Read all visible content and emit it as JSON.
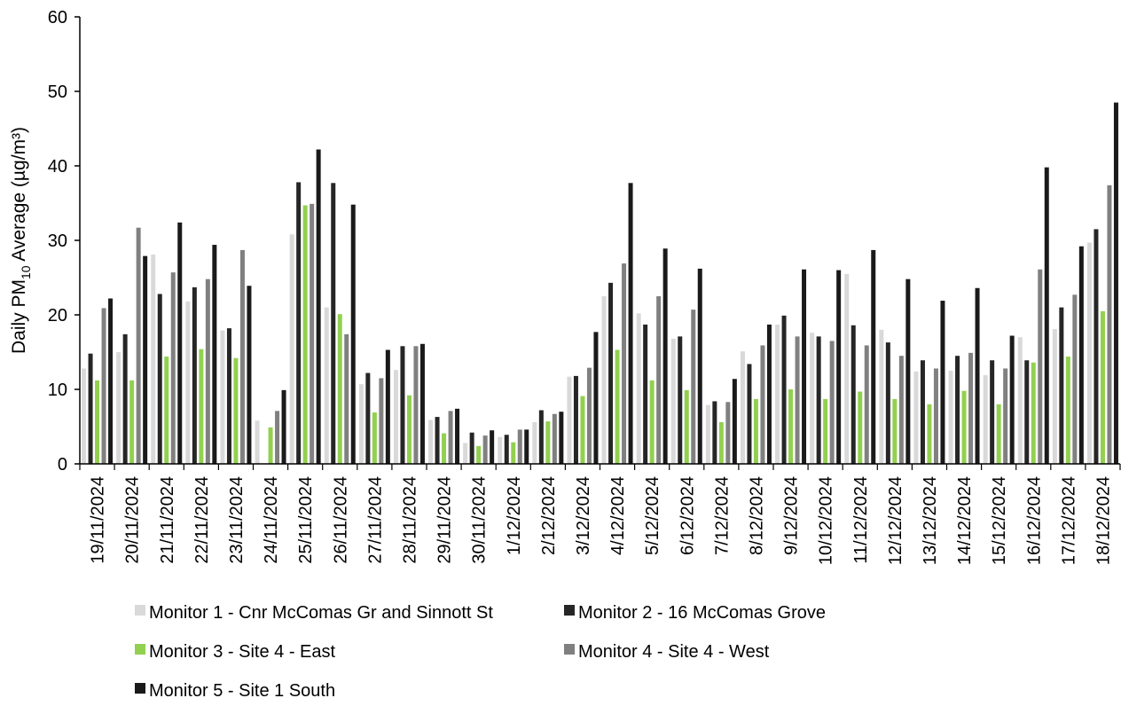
{
  "chart_data": {
    "type": "bar",
    "ylabel": {
      "main": "Daily PM",
      "sub": "10",
      "rest": " Average (µg/m³)"
    },
    "ylim": [
      0,
      60
    ],
    "yticks": [
      "0",
      "10",
      "20",
      "30",
      "40",
      "50",
      "60"
    ],
    "grid": false,
    "legend_position": "bottom",
    "categories": [
      "19/11/2024",
      "20/11/2024",
      "21/11/2024",
      "22/11/2024",
      "23/11/2024",
      "24/11/2024",
      "25/11/2024",
      "26/11/2024",
      "27/11/2024",
      "28/11/2024",
      "29/11/2024",
      "30/11/2024",
      "1/12/2024",
      "2/12/2024",
      "3/12/2024",
      "4/12/2024",
      "5/12/2024",
      "6/12/2024",
      "7/12/2024",
      "8/12/2024",
      "9/12/2024",
      "10/12/2024",
      "11/12/2024",
      "12/12/2024",
      "13/12/2024",
      "14/12/2024",
      "15/12/2024",
      "16/12/2024",
      "17/12/2024",
      "18/12/2024"
    ],
    "series": [
      {
        "name": "Monitor 1 - Cnr McComas Gr and Sinnott St",
        "color": "#d9d9d9",
        "values": [
          12.8,
          15.0,
          28.1,
          21.8,
          17.9,
          5.8,
          30.8,
          21.0,
          10.7,
          12.6,
          5.9,
          2.8,
          3.6,
          5.6,
          11.7,
          22.5,
          20.2,
          16.8,
          7.9,
          15.1,
          18.7,
          17.6,
          25.5,
          18.0,
          12.4,
          12.5,
          11.9,
          17.0,
          18.1,
          29.7
        ]
      },
      {
        "name": "Monitor 2 - 16 McComas Grove",
        "color": "#262626",
        "values": [
          14.8,
          17.4,
          22.8,
          23.7,
          18.2,
          null,
          37.8,
          37.7,
          12.2,
          15.8,
          6.3,
          4.2,
          3.9,
          7.2,
          11.8,
          24.3,
          18.7,
          17.1,
          8.4,
          13.4,
          19.9,
          17.1,
          18.6,
          16.3,
          13.9,
          14.5,
          13.9,
          13.9,
          21.0,
          31.5
        ]
      },
      {
        "name": "Monitor 3 - Site 4 - East",
        "color": "#92d050",
        "values": [
          11.2,
          11.2,
          14.4,
          15.4,
          14.2,
          4.9,
          34.7,
          20.1,
          6.9,
          9.2,
          4.1,
          2.4,
          2.9,
          5.7,
          9.1,
          15.3,
          11.2,
          9.9,
          5.6,
          8.7,
          10.0,
          8.7,
          9.7,
          8.7,
          8.0,
          9.8,
          8.0,
          13.6,
          14.4,
          20.5
        ]
      },
      {
        "name": "Monitor 4 - Site 4 - West",
        "color": "#808080",
        "values": [
          20.9,
          31.7,
          25.7,
          24.8,
          28.7,
          7.1,
          34.9,
          17.4,
          11.5,
          15.8,
          7.1,
          3.8,
          4.6,
          6.7,
          12.9,
          26.9,
          22.5,
          20.7,
          8.3,
          15.9,
          17.1,
          16.5,
          15.9,
          14.5,
          12.8,
          14.9,
          12.8,
          26.1,
          22.7,
          37.4
        ]
      },
      {
        "name": "Monitor 5 - Site 1 South",
        "color": "#1a1a1a",
        "values": [
          22.2,
          27.9,
          32.4,
          29.4,
          23.9,
          9.9,
          42.2,
          34.8,
          15.3,
          16.1,
          7.4,
          4.5,
          4.6,
          7.0,
          17.7,
          37.7,
          28.9,
          26.2,
          11.4,
          18.7,
          26.1,
          26.0,
          28.7,
          24.8,
          21.9,
          23.6,
          17.2,
          39.8,
          29.2,
          48.5
        ]
      }
    ]
  }
}
